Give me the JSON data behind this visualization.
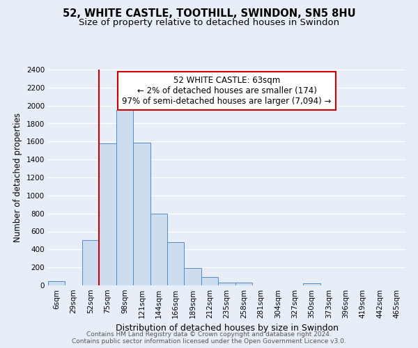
{
  "title": "52, WHITE CASTLE, TOOTHILL, SWINDON, SN5 8HU",
  "subtitle": "Size of property relative to detached houses in Swindon",
  "xlabel": "Distribution of detached houses by size in Swindon",
  "ylabel": "Number of detached properties",
  "footer_line1": "Contains HM Land Registry data © Crown copyright and database right 2024.",
  "footer_line2": "Contains public sector information licensed under the Open Government Licence v3.0.",
  "bin_labels": [
    "6sqm",
    "29sqm",
    "52sqm",
    "75sqm",
    "98sqm",
    "121sqm",
    "144sqm",
    "166sqm",
    "189sqm",
    "212sqm",
    "235sqm",
    "258sqm",
    "281sqm",
    "304sqm",
    "327sqm",
    "350sqm",
    "373sqm",
    "396sqm",
    "419sqm",
    "442sqm",
    "465sqm"
  ],
  "bin_values": [
    50,
    0,
    500,
    1580,
    1950,
    1590,
    800,
    480,
    190,
    90,
    30,
    30,
    0,
    0,
    0,
    20,
    0,
    0,
    0,
    0,
    0
  ],
  "bar_color": "#ccddf0",
  "bar_edge_color": "#5588cc",
  "vline_x": 2.5,
  "vline_color": "#cc0000",
  "annotation_title": "52 WHITE CASTLE: 63sqm",
  "annotation_line1": "← 2% of detached houses are smaller (174)",
  "annotation_line2": "97% of semi-detached houses are larger (7,094) →",
  "annotation_box_facecolor": "#ffffff",
  "annotation_box_edgecolor": "#cc0000",
  "ylim": [
    0,
    2400
  ],
  "yticks": [
    0,
    200,
    400,
    600,
    800,
    1000,
    1200,
    1400,
    1600,
    1800,
    2000,
    2200,
    2400
  ],
  "background_color": "#e8eef8",
  "grid_color": "#ffffff",
  "title_fontsize": 10.5,
  "subtitle_fontsize": 9.5,
  "ylabel_fontsize": 8.5,
  "xlabel_fontsize": 9,
  "tick_fontsize": 7.5,
  "annotation_fontsize": 8.5,
  "footer_fontsize": 6.5
}
